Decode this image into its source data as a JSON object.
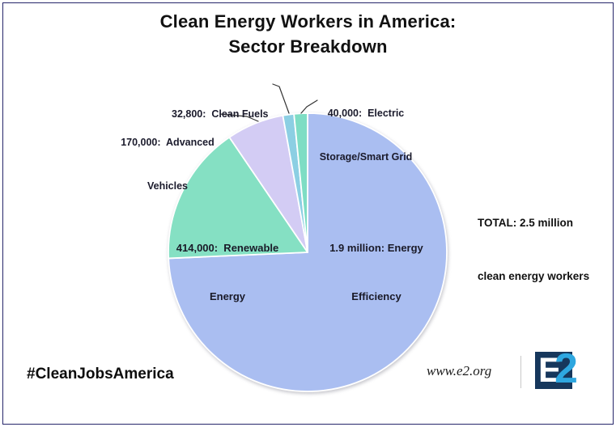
{
  "frame": {
    "border_color": "#26266a",
    "background": "#ffffff"
  },
  "title": {
    "line1": "Clean Energy Workers in America:",
    "line2": "Sector Breakdown"
  },
  "annotations": {
    "total_line1": "TOTAL: 2.5 million",
    "total_line2": "clean energy workers",
    "hashtag": "#CleanJobsAmerica"
  },
  "footer": {
    "website": "www.e2.org",
    "logo_e": "E",
    "logo_2": "2",
    "logo_navy": "#16375c",
    "logo_blue": "#2ea7e0"
  },
  "chart_data": {
    "type": "pie",
    "title": "Clean Energy Workers in America: Sector Breakdown",
    "total_display": "TOTAL: 2.5 million clean energy workers",
    "start_angle_deg": 0,
    "direction": "clockwise",
    "legend_position": "none",
    "slices": [
      {
        "name": "Energy Efficiency",
        "value": 1900000,
        "value_display": "1.9 million",
        "color": "#aabef1",
        "label_lines": [
          "1.9 million: Energy",
          "Efficiency"
        ],
        "label_placement": "inside"
      },
      {
        "name": "Renewable Energy",
        "value": 414000,
        "value_display": "414,000",
        "color": "#85e0c3",
        "label_lines": [
          "414,000:  Renewable",
          "Energy"
        ],
        "label_placement": "inside"
      },
      {
        "name": "Advanced Vehicles",
        "value": 170000,
        "value_display": "170,000",
        "color": "#d3ccf4",
        "label_lines": [
          "170,000:  Advanced",
          "Vehicles"
        ],
        "label_placement": "outside"
      },
      {
        "name": "Clean Fuels",
        "value": 32800,
        "value_display": "32,800",
        "color": "#8ccfe3",
        "label_lines": [
          "32,800:  Clean Fuels"
        ],
        "label_placement": "outside"
      },
      {
        "name": "Electric Storage/Smart Grid",
        "value": 40000,
        "value_display": "40,000",
        "color": "#7eddc4",
        "label_lines": [
          "40,000:  Electric",
          "Storage/Smart Grid"
        ],
        "label_placement": "outside"
      }
    ]
  }
}
